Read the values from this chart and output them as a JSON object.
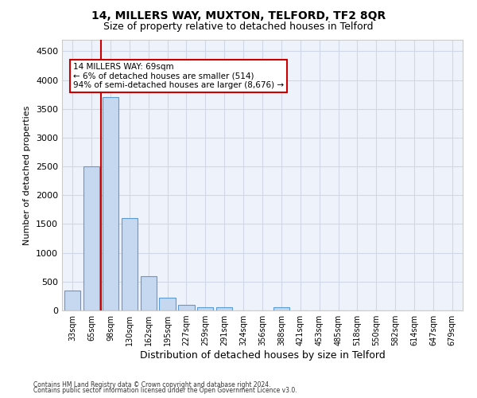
{
  "title1": "14, MILLERS WAY, MUXTON, TELFORD, TF2 8QR",
  "title2": "Size of property relative to detached houses in Telford",
  "xlabel": "Distribution of detached houses by size in Telford",
  "ylabel": "Number of detached properties",
  "categories": [
    "33sqm",
    "65sqm",
    "98sqm",
    "130sqm",
    "162sqm",
    "195sqm",
    "227sqm",
    "259sqm",
    "291sqm",
    "324sqm",
    "356sqm",
    "388sqm",
    "421sqm",
    "453sqm",
    "485sqm",
    "518sqm",
    "550sqm",
    "582sqm",
    "614sqm",
    "647sqm",
    "679sqm"
  ],
  "values": [
    350,
    2500,
    3700,
    1600,
    600,
    225,
    100,
    50,
    50,
    0,
    0,
    50,
    0,
    0,
    0,
    0,
    0,
    0,
    0,
    0,
    0
  ],
  "bar_color": "#c5d8f0",
  "bar_edge_color": "#5b9bd5",
  "grid_color": "#d0d8e8",
  "background_color": "#eef3fb",
  "annotation_text": "14 MILLERS WAY: 69sqm\n← 6% of detached houses are smaller (514)\n94% of semi-detached houses are larger (8,676) →",
  "annotation_box_color": "#ffffff",
  "annotation_box_edge": "#cc0000",
  "red_line_color": "#cc0000",
  "ylim": [
    0,
    4700
  ],
  "yticks": [
    0,
    500,
    1000,
    1500,
    2000,
    2500,
    3000,
    3500,
    4000,
    4500
  ],
  "footer1": "Contains HM Land Registry data © Crown copyright and database right 2024.",
  "footer2": "Contains public sector information licensed under the Open Government Licence v3.0."
}
